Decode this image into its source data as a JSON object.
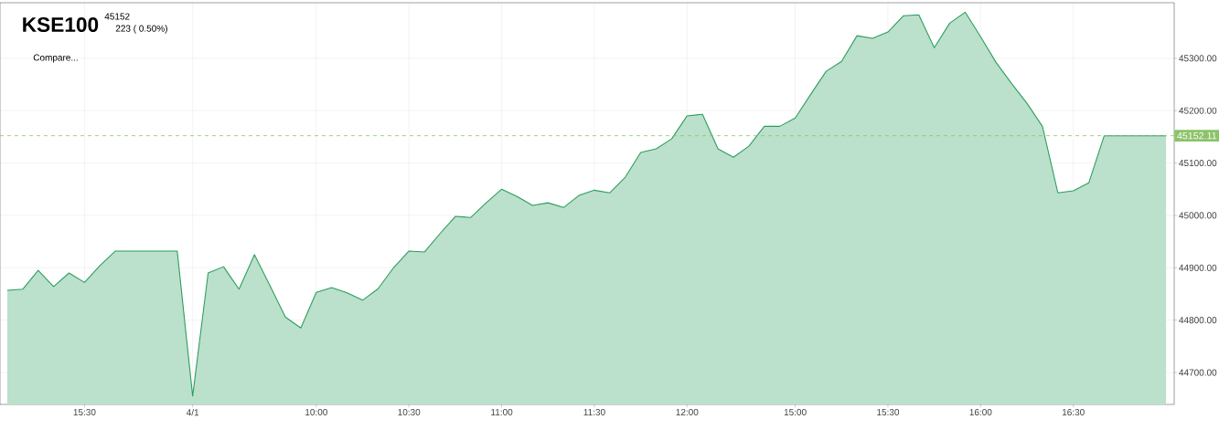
{
  "chart_data": {
    "type": "area",
    "title": "KSE100",
    "subtitle": "45152",
    "annotations": [
      "223 ( 0.50%)",
      "Compare..."
    ],
    "categories": [
      null,
      null,
      null,
      null,
      null,
      "15:30",
      null,
      null,
      null,
      null,
      null,
      null,
      "4/1",
      null,
      null,
      null,
      null,
      null,
      null,
      null,
      "10:00",
      null,
      null,
      null,
      null,
      null,
      "10:30",
      null,
      null,
      null,
      null,
      null,
      "11:00",
      null,
      null,
      null,
      null,
      null,
      "11:30",
      null,
      null,
      null,
      null,
      null,
      "12:00",
      null,
      null,
      null,
      null,
      null,
      null,
      "15:00",
      null,
      null,
      null,
      null,
      null,
      "15:30",
      null,
      null,
      null,
      null,
      null,
      "16:00",
      null,
      null,
      null,
      null,
      null,
      "16:30",
      null,
      null,
      null,
      null,
      null,
      null
    ],
    "series": [
      {
        "color": "#2a9d5c",
        "values": [
          44857,
          44859,
          44895,
          44864,
          44890,
          44872,
          44904,
          44932,
          44932,
          44932,
          44932,
          44932,
          44655,
          44890,
          44902,
          44859,
          44925,
          44866,
          44806,
          44785,
          44853,
          44862,
          44852,
          44838,
          44860,
          44900,
          44932,
          44930,
          44965,
          44998,
          44996,
          45024,
          45050,
          45036,
          45019,
          45024,
          45015,
          45038,
          45048,
          45043,
          45073,
          45120,
          45127,
          45146,
          45190,
          45193,
          45127,
          45111,
          45132,
          45170,
          45170,
          45186,
          45231,
          45275,
          45294,
          45343,
          45338,
          45350,
          45381,
          45383,
          45320,
          45367,
          45388,
          45341,
          45292,
          45252,
          45214,
          45170,
          45043,
          45047,
          45062,
          45152,
          45152,
          45152,
          45152,
          45152
        ]
      }
    ],
    "ylim": [
      44639,
      45406
    ],
    "yticks": [
      {
        "value": 44700,
        "label": "44700.00"
      },
      {
        "value": 44800,
        "label": "44800.00"
      },
      {
        "value": 44900,
        "label": "44900.00"
      },
      {
        "value": 45000,
        "label": "45000.00"
      },
      {
        "value": 45100,
        "label": "45100.00"
      },
      {
        "value": 45200,
        "label": "45200.00"
      },
      {
        "value": 45300,
        "label": "45300.00"
      }
    ],
    "ref_lines": [
      {
        "axis": "y",
        "value": 45152.11,
        "label": "45152.11",
        "color": "#8cc36a",
        "line_style": "dashed"
      }
    ],
    "grid": true,
    "marker": "none",
    "line_style": "solid"
  }
}
